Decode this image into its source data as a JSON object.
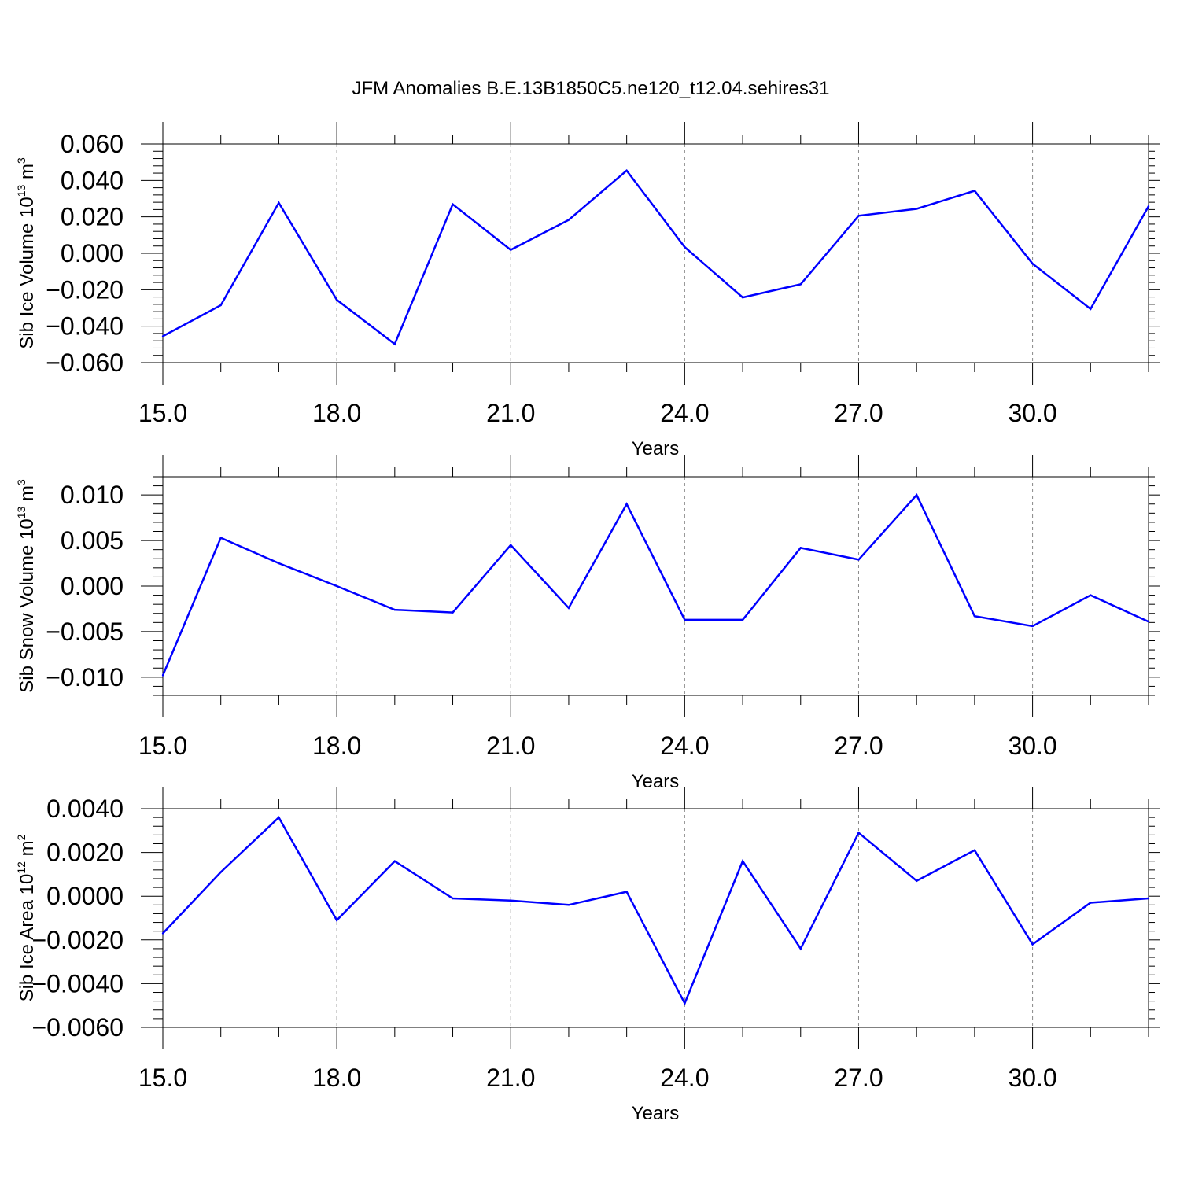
{
  "title": "JFM Anomalies B.E.13B1850C5.ne120_t12.04.sehires31",
  "line_color": "#0000ff",
  "chart_data": [
    {
      "type": "line",
      "xlabel": "Years",
      "ylabel": {
        "text": "Sib Ice Volume 10",
        "sup1": "13",
        "unit": " m",
        "sup2": "3"
      },
      "xlim": [
        15,
        32
      ],
      "ylim": [
        -0.06,
        0.06
      ],
      "x_ticks": [
        15,
        18,
        21,
        24,
        27,
        30
      ],
      "x_tick_labels": [
        "15.0",
        "18.0",
        "21.0",
        "24.0",
        "27.0",
        "30.0"
      ],
      "y_ticks": [
        -0.06,
        -0.04,
        -0.02,
        0,
        0.02,
        0.04,
        0.06
      ],
      "y_tick_labels": [
        "-0.060",
        "-0.040",
        "-0.020",
        "0.000",
        "0.020",
        "0.040",
        "0.060"
      ],
      "x": [
        15,
        16,
        17,
        18,
        19,
        20,
        21,
        22,
        23,
        24,
        25,
        26,
        27,
        28,
        29,
        30,
        31,
        32
      ],
      "values": [
        -0.0455,
        -0.0285,
        0.0277,
        -0.0255,
        -0.0498,
        0.0269,
        0.0019,
        0.0183,
        0.0454,
        0.0034,
        -0.0242,
        -0.017,
        0.0206,
        0.0244,
        0.0343,
        -0.0057,
        -0.0305,
        0.0258
      ],
      "grid": "vertical dashed"
    },
    {
      "type": "line",
      "xlabel": "Years",
      "ylabel": {
        "text": "Sib Snow Volume 10",
        "sup1": "13",
        "unit": " m",
        "sup2": "3"
      },
      "xlim": [
        15,
        32
      ],
      "ylim": [
        -0.012,
        0.012
      ],
      "x_ticks": [
        15,
        18,
        21,
        24,
        27,
        30
      ],
      "x_tick_labels": [
        "15.0",
        "18.0",
        "21.0",
        "24.0",
        "27.0",
        "30.0"
      ],
      "y_ticks": [
        -0.01,
        -0.005,
        0,
        0.005,
        0.01
      ],
      "y_tick_labels": [
        "-0.010",
        "-0.005",
        "0.000",
        "0.005",
        "0.010"
      ],
      "x": [
        15,
        16,
        17,
        18,
        19,
        20,
        21,
        22,
        23,
        24,
        25,
        26,
        27,
        28,
        29,
        30,
        31,
        32
      ],
      "values": [
        -0.0098,
        0.0053,
        0.0025,
        0.0,
        -0.0026,
        -0.0029,
        0.0045,
        -0.0024,
        0.009,
        -0.0037,
        -0.0037,
        0.0042,
        0.0029,
        0.01,
        -0.0033,
        -0.0044,
        -0.001,
        -0.0039
      ],
      "grid": "vertical dashed"
    },
    {
      "type": "line",
      "xlabel": "Years",
      "ylabel": {
        "text": "Sib Ice Area 10",
        "sup1": "12",
        "unit": " m",
        "sup2": "2"
      },
      "xlim": [
        15,
        32
      ],
      "ylim": [
        -0.006,
        0.004
      ],
      "x_ticks": [
        15,
        18,
        21,
        24,
        27,
        30
      ],
      "x_tick_labels": [
        "15.0",
        "18.0",
        "21.0",
        "24.0",
        "27.0",
        "30.0"
      ],
      "y_ticks": [
        -0.006,
        -0.004,
        -0.002,
        0,
        0.002,
        0.004
      ],
      "y_tick_labels": [
        "-0.0060",
        "-0.0040",
        "-0.0020",
        "0.0000",
        "0.0020",
        "0.0040"
      ],
      "x": [
        15,
        16,
        17,
        18,
        19,
        20,
        21,
        22,
        23,
        24,
        25,
        26,
        27,
        28,
        29,
        30,
        31,
        32
      ],
      "values": [
        -0.0017,
        0.0011,
        0.0036,
        -0.0011,
        0.0016,
        -0.0001,
        -0.0002,
        -0.0004,
        0.0002,
        -0.0049,
        0.0016,
        -0.0024,
        0.0029,
        0.0007,
        0.0021,
        -0.0022,
        -0.0003,
        -0.0001
      ],
      "grid": "vertical dashed"
    }
  ]
}
